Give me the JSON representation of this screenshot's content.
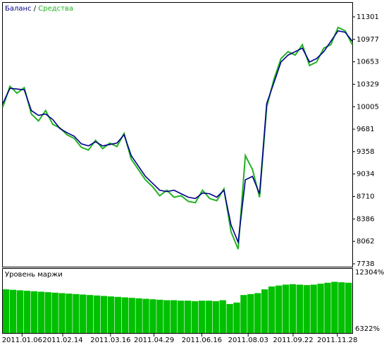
{
  "chart_data": [
    {
      "type": "line",
      "legend_separator": " / ",
      "x": [
        0,
        1,
        2,
        3,
        4,
        5,
        6,
        7,
        8,
        9,
        10,
        11,
        12,
        13,
        14,
        15,
        16,
        17,
        18,
        19,
        20,
        21,
        22,
        23,
        24,
        25,
        26,
        27,
        28,
        29,
        30,
        31,
        32,
        33,
        34,
        35,
        36,
        37,
        38,
        39,
        40,
        41,
        42,
        43,
        44,
        45,
        46,
        47,
        48,
        49
      ],
      "xlim": [
        0,
        49
      ],
      "series": [
        {
          "name": "Баланс",
          "color": "#00008b",
          "values": [
            10050,
            10270,
            10260,
            10250,
            9950,
            9880,
            9900,
            9820,
            9690,
            9630,
            9580,
            9470,
            9440,
            9500,
            9440,
            9460,
            9480,
            9600,
            9300,
            9150,
            9000,
            8900,
            8800,
            8780,
            8800,
            8750,
            8700,
            8680,
            8760,
            8750,
            8700,
            8800,
            8300,
            8050,
            8950,
            9000,
            8750,
            10050,
            10350,
            10650,
            10750,
            10800,
            10850,
            10650,
            10700,
            10800,
            10950,
            11100,
            11080,
            10950
          ]
        },
        {
          "name": "Средства",
          "color": "#22b222",
          "values": [
            10000,
            10300,
            10200,
            10280,
            9900,
            9800,
            9950,
            9750,
            9700,
            9600,
            9550,
            9420,
            9380,
            9520,
            9400,
            9480,
            9430,
            9620,
            9250,
            9100,
            8950,
            8850,
            8720,
            8800,
            8700,
            8720,
            8640,
            8620,
            8800,
            8680,
            8650,
            8820,
            8200,
            7950,
            9300,
            9100,
            8700,
            10000,
            10400,
            10700,
            10800,
            10750,
            10900,
            10600,
            10650,
            10850,
            10900,
            11150,
            11100,
            10900
          ]
        }
      ],
      "ylim": [
        7697,
        11504
      ],
      "yticks": [
        11301,
        10977,
        10653,
        10329,
        10005,
        9681,
        9358,
        9034,
        8710,
        8386,
        8062,
        7738
      ]
    },
    {
      "type": "bar",
      "title": "Уровень маржи",
      "color": "#00c000",
      "x": [
        0,
        1,
        2,
        3,
        4,
        5,
        6,
        7,
        8,
        9,
        10,
        11,
        12,
        13,
        14,
        15,
        16,
        17,
        18,
        19,
        20,
        21,
        22,
        23,
        24,
        25,
        26,
        27,
        28,
        29,
        30,
        31,
        32,
        33,
        34,
        35,
        36,
        37,
        38,
        39,
        40,
        41,
        42,
        43,
        44,
        45,
        46,
        47,
        48,
        49
      ],
      "xlim": [
        0,
        49
      ],
      "values": [
        10500,
        10450,
        10400,
        10350,
        10300,
        10250,
        10200,
        10150,
        10100,
        10050,
        10000,
        9950,
        9900,
        9850,
        9800,
        9750,
        9700,
        9650,
        9600,
        9550,
        9500,
        9450,
        9400,
        9350,
        9350,
        9300,
        9300,
        9250,
        9300,
        9300,
        9250,
        9350,
        8950,
        9100,
        9900,
        10000,
        10100,
        10500,
        10800,
        10900,
        11000,
        11050,
        11000,
        10950,
        11000,
        11100,
        11200,
        11300,
        11250,
        11200
      ],
      "ylim": [
        6322,
        12304
      ],
      "yticks": [
        {
          "value": 12304,
          "label": "12304%"
        },
        {
          "value": 6322,
          "label": "6322%"
        }
      ],
      "xticks": [
        {
          "value": 2.7,
          "label": "2011.01.06"
        },
        {
          "value": 8.4,
          "label": "2011.02.14"
        },
        {
          "value": 15.1,
          "label": "2011.03.16"
        },
        {
          "value": 21.2,
          "label": "2011.04.29"
        },
        {
          "value": 27.9,
          "label": "2011.06.16"
        },
        {
          "value": 34.4,
          "label": "2011.08.03"
        },
        {
          "value": 40.7,
          "label": "2011.09.22"
        },
        {
          "value": 46.9,
          "label": "2011.11.28"
        }
      ]
    }
  ]
}
